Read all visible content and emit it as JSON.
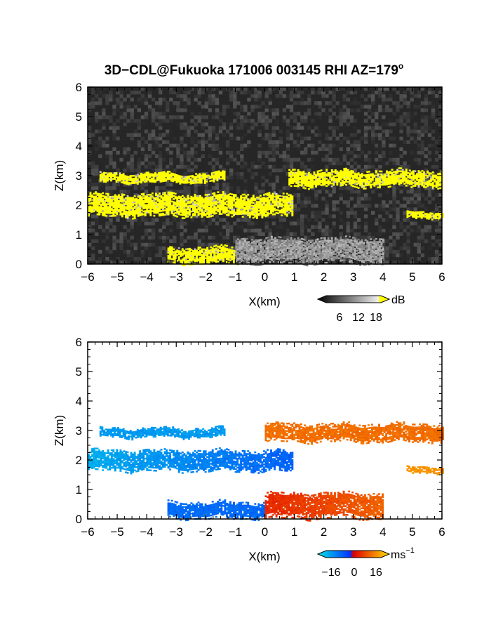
{
  "title": {
    "main": "3D−CDL@Fukuoka 171006 003145 RHI AZ=179",
    "deg": "o"
  },
  "chart_data": [
    {
      "type": "heatmap",
      "panel": "reflectivity",
      "xlabel": "X(km)",
      "ylabel": "Z(km)",
      "xlim": [
        -6,
        6
      ],
      "ylim": [
        0,
        6
      ],
      "x_ticks": [
        "−6",
        "−5",
        "−4",
        "−3",
        "−2",
        "−1",
        "0",
        "1",
        "2",
        "3",
        "4",
        "5",
        "6"
      ],
      "y_ticks": [
        "0",
        "1",
        "2",
        "3",
        "4",
        "5",
        "6"
      ],
      "colorbar": {
        "label": "dB",
        "ticks": [
          "6",
          "12",
          "18"
        ],
        "range": [
          0,
          21
        ],
        "colors": [
          "#000000",
          "#ffffff",
          "#ffff00"
        ]
      },
      "background": "#262626",
      "features": [
        {
          "name": "upper layer",
          "x": [
            0.8,
            6.0
          ],
          "z": [
            2.6,
            3.15
          ],
          "value": "20+"
        },
        {
          "name": "upper fragments",
          "x": [
            -5.6,
            -1.4
          ],
          "z": [
            2.75,
            3.05
          ],
          "value": "20+"
        },
        {
          "name": "middle layer",
          "x": [
            -6.0,
            0.9
          ],
          "z": [
            1.6,
            2.35
          ],
          "value": "20+"
        },
        {
          "name": "right patch",
          "x": [
            4.8,
            6.0
          ],
          "z": [
            1.55,
            1.8
          ],
          "value": "20+"
        },
        {
          "name": "low streak",
          "x": [
            -3.3,
            -1.0
          ],
          "z": [
            0.0,
            0.55
          ],
          "value": "20+"
        },
        {
          "name": "low echo",
          "x": [
            -1.0,
            4.0
          ],
          "z": [
            0.0,
            0.9
          ],
          "value": "8-14"
        }
      ]
    },
    {
      "type": "heatmap",
      "panel": "doppler velocity",
      "xlabel": "X(km)",
      "ylabel": "Z(km)",
      "xlim": [
        -6,
        6
      ],
      "ylim": [
        0,
        6
      ],
      "x_ticks": [
        "−6",
        "−5",
        "−4",
        "−3",
        "−2",
        "−1",
        "0",
        "1",
        "2",
        "3",
        "4",
        "5",
        "6"
      ],
      "y_ticks": [
        "0",
        "1",
        "2",
        "3",
        "4",
        "5",
        "6"
      ],
      "colorbar": {
        "label": "ms",
        "label_exp": "−1",
        "ticks": [
          "−16",
          "0",
          "16"
        ],
        "range": [
          -20,
          20
        ],
        "colors": [
          "#00e5e5",
          "#0033ff",
          "#e00000",
          "#ffe000"
        ]
      },
      "features": [
        {
          "name": "upper layer",
          "x": [
            0.0,
            6.0
          ],
          "z": [
            2.6,
            3.2
          ],
          "value": 11
        },
        {
          "name": "upper fragments",
          "x": [
            -5.6,
            -1.4
          ],
          "z": [
            2.75,
            3.05
          ],
          "value": -12
        },
        {
          "name": "middle layer",
          "x": [
            -6.0,
            0.9
          ],
          "z": [
            1.6,
            2.3
          ],
          "value": [
            -14,
            -6
          ]
        },
        {
          "name": "right patch",
          "x": [
            4.8,
            6.0
          ],
          "z": [
            1.55,
            1.8
          ],
          "value": 15
        },
        {
          "name": "low streak",
          "x": [
            -3.3,
            0.0
          ],
          "z": [
            0.0,
            0.55
          ],
          "value": -7
        },
        {
          "name": "low echo",
          "x": [
            0.0,
            4.0
          ],
          "z": [
            0.0,
            0.9
          ],
          "value": [
            4,
            10
          ]
        }
      ]
    }
  ]
}
